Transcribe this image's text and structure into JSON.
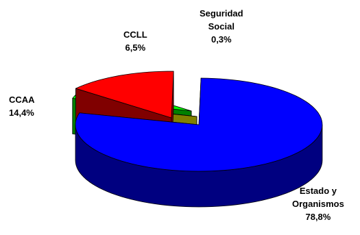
{
  "chart_data": {
    "type": "pie",
    "title": "",
    "slices": [
      {
        "label": [
          "Estado y",
          "Organismos"
        ],
        "value_label": "78,8%",
        "value": 78.8,
        "color": "#0000ff",
        "side_color": "#000080"
      },
      {
        "label": [
          "Seguridad",
          "Social"
        ],
        "value_label": "0,3%",
        "value": 0.3,
        "color": "#ffff99",
        "side_color": "#808000"
      },
      {
        "label": [
          "CCLL"
        ],
        "value_label": "6,5%",
        "value": 6.5,
        "color": "#00ff00",
        "side_color": "#008000"
      },
      {
        "label": [
          "CCAA"
        ],
        "value_label": "14,4%",
        "value": 14.4,
        "color": "#ff0000",
        "side_color": "#800000"
      }
    ],
    "exploded": true,
    "three_d": true,
    "legend": "none"
  }
}
